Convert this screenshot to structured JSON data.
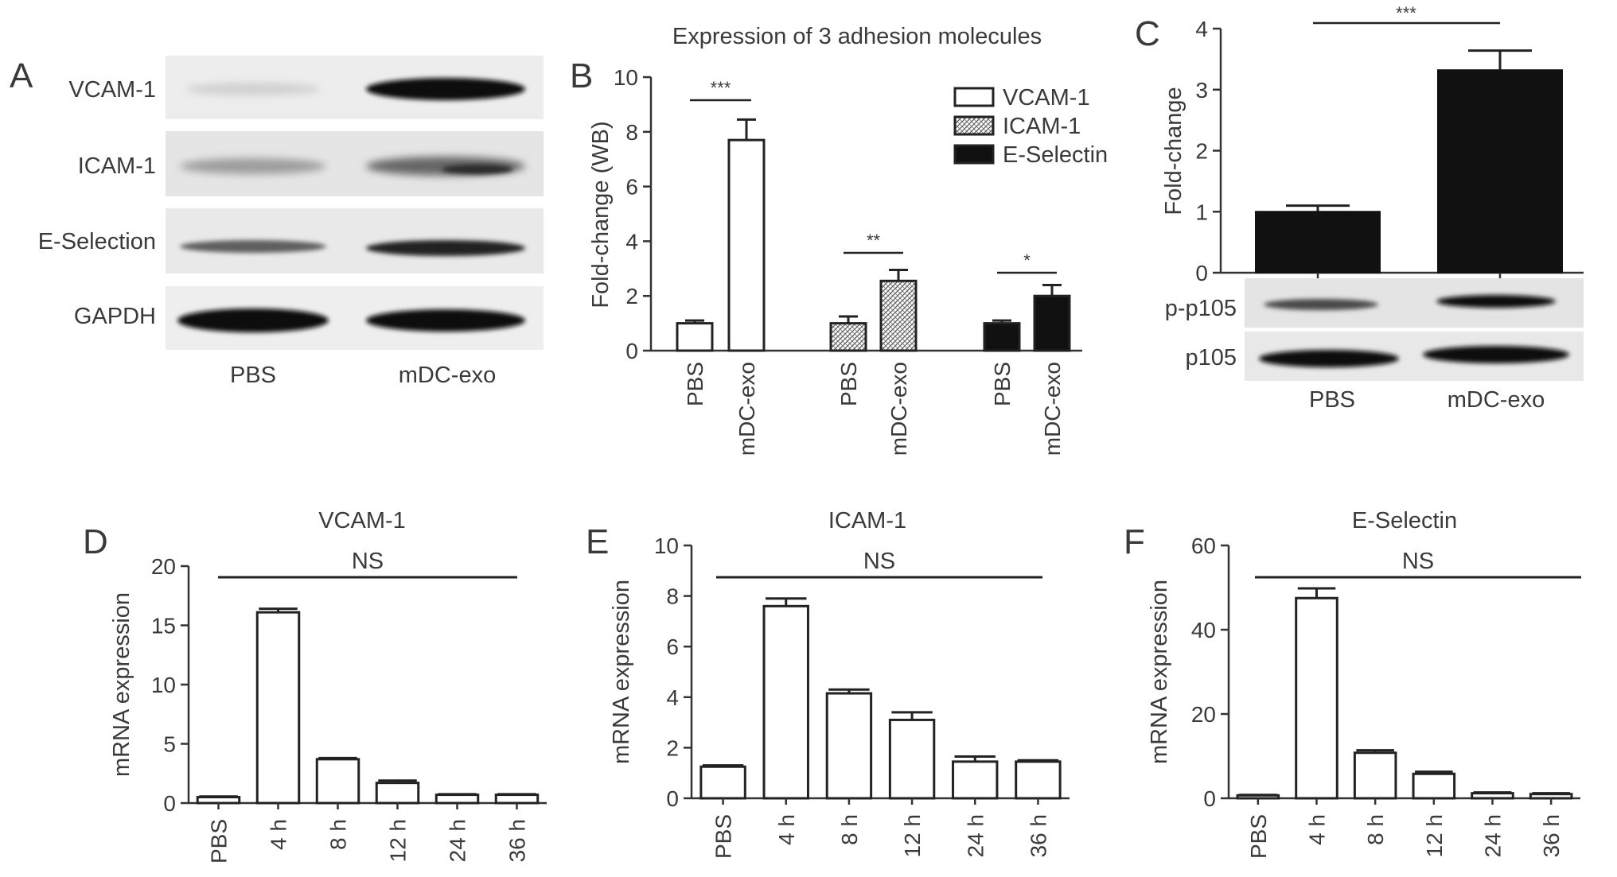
{
  "panel_letters": {
    "a": "A",
    "b": "B",
    "c": "C",
    "d": "D",
    "e": "E",
    "f": "F"
  },
  "blot_a": {
    "rows": [
      "VCAM-1",
      "ICAM-1",
      "E-Selection",
      "GAPDH"
    ],
    "lanes": [
      "PBS",
      "mDC-exo"
    ]
  },
  "blot_c": {
    "rows": [
      "p-p105",
      "p105"
    ],
    "lanes": [
      "PBS",
      "mDC-exo"
    ]
  },
  "chart_data": [
    {
      "id": "B",
      "type": "bar",
      "title": "Expression of 3 adhesion molecules",
      "ylabel": "Fold-change (WB)",
      "xlabel": "",
      "ylim": [
        0,
        10
      ],
      "yticks": [
        0,
        2,
        4,
        6,
        8,
        10
      ],
      "groups": [
        {
          "name": "VCAM-1",
          "categories": [
            "PBS",
            "mDC-exo"
          ],
          "values": [
            1.0,
            7.7
          ],
          "errors": [
            0.1,
            0.75
          ],
          "fill": "white",
          "significance": "***"
        },
        {
          "name": "ICAM-1",
          "categories": [
            "PBS",
            "mDC-exo"
          ],
          "values": [
            1.0,
            2.55
          ],
          "errors": [
            0.25,
            0.4
          ],
          "fill": "hatch",
          "significance": "**"
        },
        {
          "name": "E-Selectin",
          "categories": [
            "PBS",
            "mDC-exo"
          ],
          "values": [
            1.0,
            2.0
          ],
          "errors": [
            0.1,
            0.4
          ],
          "fill": "black",
          "significance": "*"
        }
      ],
      "legend": {
        "placement": "top-right",
        "entries": [
          "VCAM-1",
          "ICAM-1",
          "E-Selectin"
        ]
      }
    },
    {
      "id": "C",
      "type": "bar",
      "title": "",
      "ylabel": "Fold-change",
      "xlabel": "",
      "ylim": [
        0,
        4
      ],
      "yticks": [
        0,
        1,
        2,
        3,
        4
      ],
      "categories": [
        "PBS",
        "mDC-exo"
      ],
      "values": [
        1.0,
        3.32
      ],
      "errors": [
        0.1,
        0.32
      ],
      "fill": "black",
      "significance": "***"
    },
    {
      "id": "D",
      "type": "bar",
      "title": "VCAM-1",
      "ylabel": "mRNA expression",
      "xlabel": "",
      "ylim": [
        0,
        20
      ],
      "yticks": [
        0,
        5,
        10,
        15,
        20
      ],
      "categories": [
        "PBS",
        "4 h",
        "8 h",
        "12 h",
        "24 h",
        "36 h"
      ],
      "values": [
        0.5,
        16.1,
        3.7,
        1.7,
        0.7,
        0.7
      ],
      "errors": [
        0.05,
        0.3,
        0.1,
        0.2,
        0.05,
        0.05
      ],
      "significance": "NS"
    },
    {
      "id": "E",
      "type": "bar",
      "title": "ICAM-1",
      "ylabel": "mRNA expression",
      "xlabel": "",
      "ylim": [
        0,
        10
      ],
      "yticks": [
        0,
        2,
        4,
        6,
        8,
        10
      ],
      "categories": [
        "PBS",
        "4 h",
        "8 h",
        "12 h",
        "24 h",
        "36 h"
      ],
      "values": [
        1.25,
        7.6,
        4.15,
        3.1,
        1.45,
        1.45
      ],
      "errors": [
        0.05,
        0.3,
        0.15,
        0.3,
        0.2,
        0.05
      ],
      "significance": "NS"
    },
    {
      "id": "F",
      "type": "bar",
      "title": "E-Selectin",
      "ylabel": "mRNA expression",
      "xlabel": "",
      "ylim": [
        0,
        60
      ],
      "yticks": [
        0,
        20,
        40,
        60
      ],
      "categories": [
        "PBS",
        "4 h",
        "8 h",
        "12 h",
        "24 h",
        "36 h"
      ],
      "values": [
        0.7,
        47.5,
        10.8,
        5.8,
        1.2,
        1.0
      ],
      "errors": [
        0.1,
        2.3,
        0.6,
        0.5,
        0.2,
        0.2
      ],
      "significance": "NS"
    }
  ]
}
